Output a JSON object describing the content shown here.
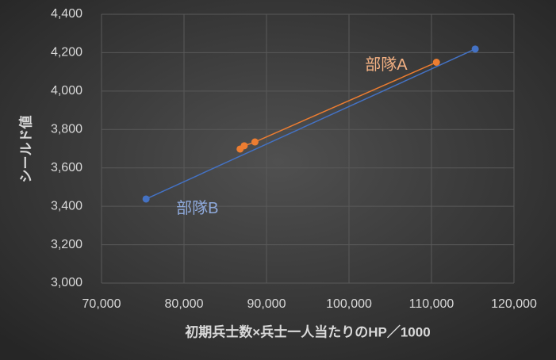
{
  "chart_data": {
    "type": "scatter",
    "x_label": "初期兵士数×兵士一人当たりのHP／1000",
    "y_label": "シールド値",
    "series": [
      {
        "name": "部隊A",
        "color": "#ed7d31",
        "label_color": "#f4b183",
        "x": [
          86800,
          87300,
          88600,
          110600
        ],
        "values": [
          3698,
          3715,
          3735,
          4150
        ]
      },
      {
        "name": "部隊B",
        "color": "#4472c4",
        "label_color": "#8faadc",
        "x": [
          75400,
          115300
        ],
        "values": [
          3438,
          4219
        ]
      }
    ],
    "xlim": [
      70000,
      120000
    ],
    "xticks": [
      {
        "value": 70000,
        "label": "70,000"
      },
      {
        "value": 80000,
        "label": "80,000"
      },
      {
        "value": 90000,
        "label": "90,000"
      },
      {
        "value": 100000,
        "label": "100,000"
      },
      {
        "value": 110000,
        "label": "110,000"
      },
      {
        "value": 120000,
        "label": "120,000"
      }
    ],
    "ylim": [
      3000,
      4400
    ],
    "yticks": [
      {
        "value": 3000,
        "label": "3,000"
      },
      {
        "value": 3200,
        "label": "3,200"
      },
      {
        "value": 3400,
        "label": "3,400"
      },
      {
        "value": 3600,
        "label": "3,600"
      },
      {
        "value": 3800,
        "label": "3,800"
      },
      {
        "value": 4000,
        "label": "4,000"
      },
      {
        "value": 4200,
        "label": "4,200"
      },
      {
        "value": 4400,
        "label": "4,400"
      }
    ],
    "grid": true
  }
}
